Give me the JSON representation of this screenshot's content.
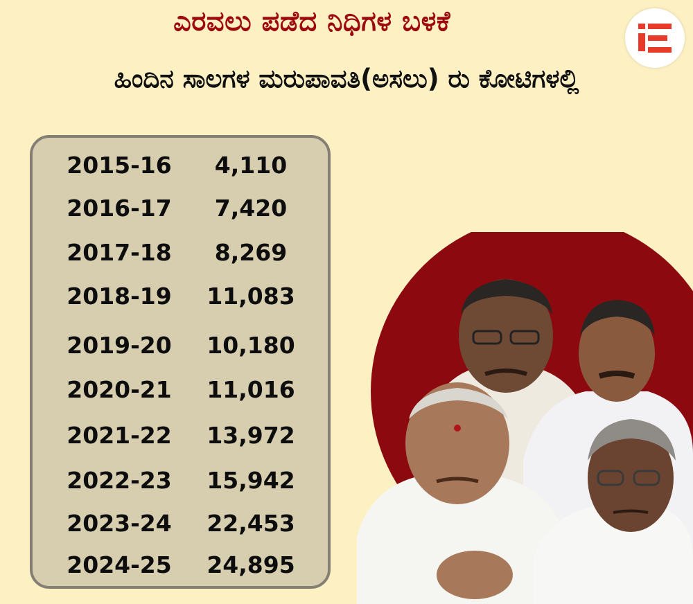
{
  "header": {
    "title": "ಎರವಲು ಪಡೆದ ನಿಧಿಗಳ ಬಳಕೆ",
    "subtitle": "ಹಿಂದಿನ ಸಾಲಗಳ ಮರುಪಾವತಿ(ಅಸಲು) ರು ಕೋಟಿಗಳಲ್ಲಿ"
  },
  "logo": {
    "icon": "ie-logo-icon",
    "color": "#e83a2a"
  },
  "colors": {
    "background": "#fdf1c4",
    "title": "#9c0a10",
    "panel": "#d7ceb0",
    "panel_border": "#857f73",
    "circle": "#8c0a0f"
  },
  "table": {
    "rows": [
      {
        "year": "2015-16",
        "value": "4,110"
      },
      {
        "year": "2016-17",
        "value": "7,420"
      },
      {
        "year": "2017-18",
        "value": "8,269"
      },
      {
        "year": "2018-19",
        "value": "11,083"
      },
      {
        "year": "2019-20",
        "value": "10,180"
      },
      {
        "year": "2020-21",
        "value": "11,016"
      },
      {
        "year": "2021-22",
        "value": "13,972"
      },
      {
        "year": "2022-23",
        "value": "15,942"
      },
      {
        "year": "2023-24",
        "value": "22,453"
      },
      {
        "year": "2024-25",
        "value": "24,895"
      }
    ]
  }
}
